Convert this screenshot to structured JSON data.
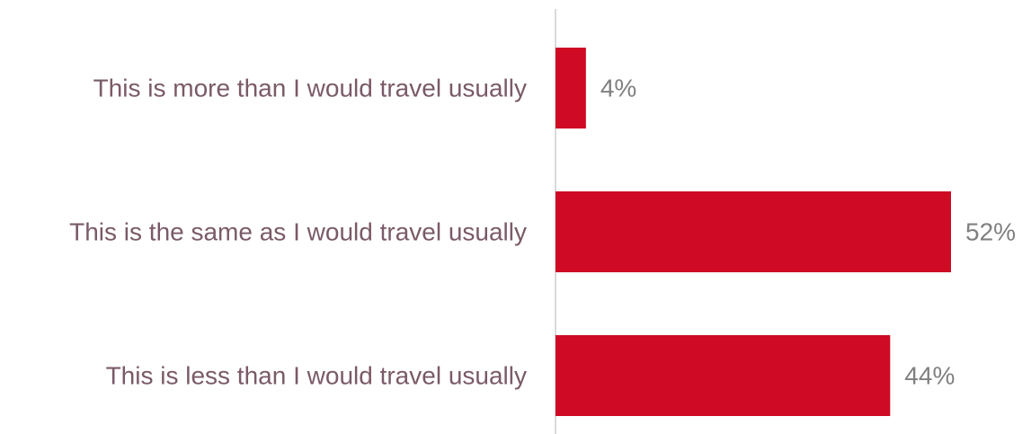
{
  "chart_data": {
    "type": "bar",
    "orientation": "horizontal",
    "categories": [
      "This is more than I would travel usually",
      "This is the same as I would travel usually",
      "This is less than I would travel usually"
    ],
    "values": [
      4,
      52,
      44
    ],
    "value_labels": [
      "4%",
      "52%",
      "44%"
    ],
    "unit": "%",
    "xlim": [
      0,
      52
    ],
    "grid": false,
    "legend": "none",
    "title": "",
    "xlabel": "",
    "ylabel": ""
  },
  "colors": {
    "bar": "#CE0A24",
    "category_text": "#7A5A68",
    "value_text": "#808080",
    "axis": "#D9D9D9"
  }
}
